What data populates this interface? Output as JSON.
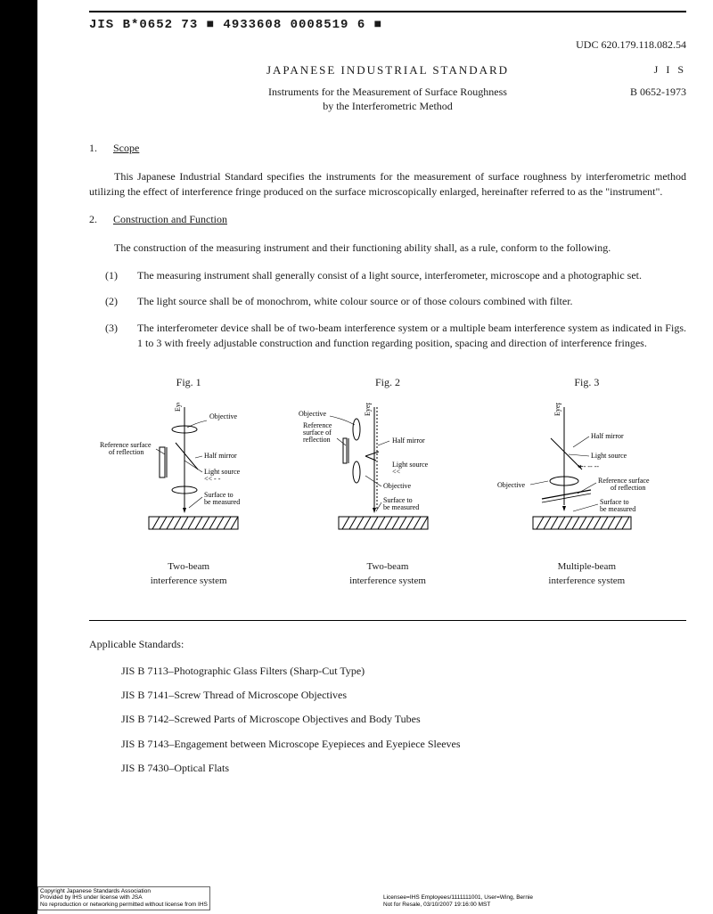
{
  "ocr": "JIS B*0652 73 ■ 4933608 0008519 6 ■",
  "udc": "UDC 620.179.118.082.54",
  "heading": "JAPANESE  INDUSTRIAL  STANDARD",
  "jis": "J I S",
  "subtitle1": "Instruments for the Measurement of Surface Roughness",
  "subtitle2": "by the Interferometric Method",
  "code": "B 0652-1973",
  "sec1": {
    "num": "1.",
    "title": "Scope"
  },
  "para1": "This Japanese Industrial Standard specifies the instruments for the measurement of surface roughness by interferometric method utilizing the effect of interference fringe produced on the surface microscopically enlarged, hereinafter referred to as the \"instrument\".",
  "sec2": {
    "num": "2.",
    "title": "Construction and Function"
  },
  "para2": "The construction of the measuring instrument and their functioning ability shall, as a rule, conform to the following.",
  "items": [
    {
      "n": "(1)",
      "t": "The measuring instrument shall generally consist of a light source, interferometer, microscope and a photographic set."
    },
    {
      "n": "(2)",
      "t": "The light source shall be of monochrom, white colour source or of those colours combined with filter."
    },
    {
      "n": "(3)",
      "t": "The interferometer device shall be of two-beam interference system or a multiple beam interference system as indicated in Figs. 1 to 3 with freely adjustable construction and function regarding position, spacing and direction of interference fringes."
    }
  ],
  "figs": [
    "Fig. 1",
    "Fig. 2",
    "Fig. 3"
  ],
  "captions": [
    "Two-beam\ninterference system",
    "Two-beam\ninterference system",
    "Multiple-beam\ninterference system"
  ],
  "labels": {
    "objective": "Objective",
    "eyepiece": "Eyepiece",
    "refsurf": "Reference surface\nof reflection",
    "halfmirror": "Half mirror",
    "lightsrc": "Light source",
    "surface": "Surface to\nbe measured",
    "refsurf2": "Reference\nsurface of\nreflection"
  },
  "applicable": "Applicable Standards:",
  "standards": [
    "JIS B 7113–Photographic Glass Filters (Sharp-Cut Type)",
    "JIS B 7141–Screw Thread of Microscope Objectives",
    "JIS B 7142–Screwed Parts of Microscope Objectives and Body Tubes",
    "JIS B 7143–Engagement between Microscope Eyepieces and Eyepiece Sleeves",
    "JIS B 7430–Optical Flats"
  ],
  "footerL": [
    "Copyright Japanese Standards Association",
    "Provided by IHS under license with JSA",
    "No reproduction or networking permitted without license from IHS"
  ],
  "footerR": [
    "Licensee=IHS Employees/1111111001, User=Wing, Bernie",
    "Not for Resale, 03/10/2007 19:16:00 MST"
  ]
}
